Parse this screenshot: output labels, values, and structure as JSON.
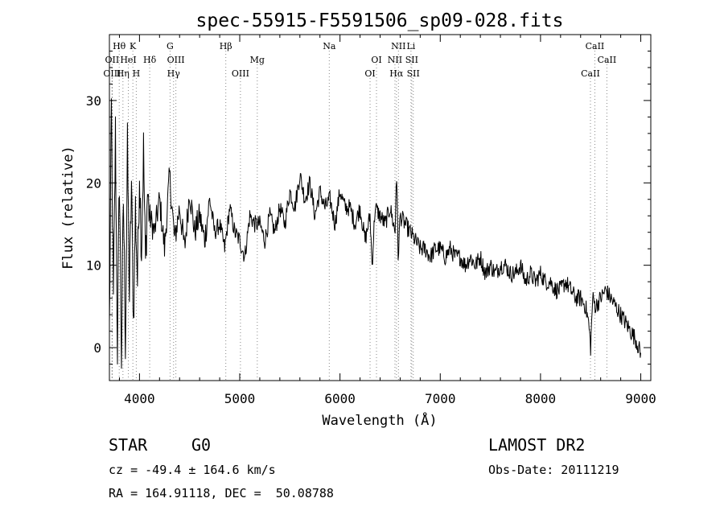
{
  "chart_data": {
    "type": "line",
    "title": "spec-55915-F5591506_sp09-028.fits",
    "xlabel": "Wavelength (Å)",
    "ylabel": "Flux (relative)",
    "xlim": [
      3700,
      9100
    ],
    "ylim": [
      -4,
      38
    ],
    "x_ticks": [
      4000,
      5000,
      6000,
      7000,
      8000,
      9000
    ],
    "x_tick_labels": [
      "4000",
      "5000",
      "6000",
      "7000",
      "8000",
      "9000"
    ],
    "y_ticks": [
      0,
      10,
      20,
      30
    ],
    "y_tick_labels": [
      "0",
      "10",
      "20",
      "30"
    ],
    "grid": false,
    "series": [
      {
        "x": [
          3700,
          3720,
          3740,
          3760,
          3780,
          3800,
          3820,
          3840,
          3860,
          3880,
          3900,
          3920,
          3940,
          3960,
          3980,
          4000,
          4020,
          4040,
          4060,
          4080,
          4100,
          4150,
          4200,
          4250,
          4300,
          4350,
          4400,
          4450,
          4500,
          4550,
          4600,
          4650,
          4700,
          4750,
          4800,
          4850,
          4900,
          4950,
          5000,
          5050,
          5100,
          5150,
          5200,
          5250,
          5300,
          5350,
          5400,
          5450,
          5500,
          5550,
          5600,
          5650,
          5700,
          5750,
          5800,
          5850,
          5900,
          5950,
          6000,
          6050,
          6100,
          6150,
          6200,
          6250,
          6300,
          6320,
          6350,
          6400,
          6450,
          6500,
          6550,
          6563,
          6580,
          6600,
          6650,
          6700,
          6750,
          6800,
          6850,
          6900,
          6950,
          7000,
          7050,
          7100,
          7150,
          7200,
          7250,
          7300,
          7350,
          7400,
          7450,
          7500,
          7550,
          7600,
          7650,
          7700,
          7750,
          7800,
          7850,
          7900,
          7950,
          8000,
          8050,
          8100,
          8150,
          8200,
          8250,
          8300,
          8350,
          8400,
          8450,
          8480,
          8500,
          8520,
          8550,
          8600,
          8650,
          8700,
          8750,
          8800,
          8850,
          8900,
          8950,
          8980,
          9000
        ],
        "y": [
          2,
          29,
          5,
          26,
          0,
          21,
          -1,
          18,
          1,
          24,
          6,
          20,
          3,
          17,
          8,
          22,
          12,
          24,
          10,
          19,
          16,
          14,
          18,
          12,
          21,
          13,
          17,
          12,
          19,
          14,
          16,
          13,
          18,
          14,
          15,
          12,
          17,
          14,
          13,
          11,
          16,
          15,
          15,
          13,
          16,
          14,
          17,
          15,
          19,
          17,
          21,
          18,
          20,
          16,
          19,
          17,
          18,
          15,
          19,
          17,
          17,
          15,
          17,
          13,
          16,
          10,
          17,
          16,
          15,
          17,
          14,
          22,
          11,
          16,
          15,
          14,
          13,
          12,
          12,
          11,
          12,
          12,
          11,
          12,
          11,
          11,
          10,
          11,
          10,
          11,
          9,
          10,
          9,
          10,
          10,
          9,
          9,
          10,
          8,
          9,
          8,
          9,
          8,
          8,
          7,
          7,
          8,
          7,
          6,
          6,
          5,
          3,
          0,
          6,
          5,
          6,
          7,
          6,
          5,
          4,
          3,
          2,
          1,
          0,
          -1
        ]
      }
    ],
    "lines": [
      {
        "label": "Hθ",
        "row": 0,
        "x": 3798
      },
      {
        "label": "K",
        "row": 0,
        "x": 3934
      },
      {
        "label": "G",
        "row": 0,
        "x": 4305
      },
      {
        "label": "Hβ",
        "row": 0,
        "x": 4861
      },
      {
        "label": "Na",
        "row": 0,
        "x": 5893
      },
      {
        "label": "NII",
        "row": 0,
        "x": 6583
      },
      {
        "label": "Li",
        "row": 0,
        "x": 6708
      },
      {
        "label": "CaII",
        "row": 0,
        "x": 8542
      },
      {
        "label": "OII",
        "row": 1,
        "x": 3727
      },
      {
        "label": "HeI",
        "row": 1,
        "x": 3889
      },
      {
        "label": "Hδ",
        "row": 1,
        "x": 4102
      },
      {
        "label": "OIII",
        "row": 1,
        "x": 4363
      },
      {
        "label": "Mg",
        "row": 1,
        "x": 5175
      },
      {
        "label": "OI",
        "row": 1,
        "x": 6364
      },
      {
        "label": "NII",
        "row": 1,
        "x": 6548
      },
      {
        "label": "SII",
        "row": 1,
        "x": 6716
      },
      {
        "label": "CaII",
        "row": 1,
        "x": 8662
      },
      {
        "label": "OIII",
        "row": 2,
        "x": 3727
      },
      {
        "label": "Hη",
        "row": 2,
        "x": 3835
      },
      {
        "label": "H",
        "row": 2,
        "x": 3968
      },
      {
        "label": "Hγ",
        "row": 2,
        "x": 4340
      },
      {
        "label": "OIII",
        "row": 2,
        "x": 5007
      },
      {
        "label": "OI",
        "row": 2,
        "x": 6300
      },
      {
        "label": "Hα",
        "row": 2,
        "x": 6563
      },
      {
        "label": "SII",
        "row": 2,
        "x": 6731
      },
      {
        "label": "CaII",
        "row": 2,
        "x": 8498
      }
    ],
    "line_color": "#000000",
    "marker_color": "#888888"
  },
  "info": {
    "object_class": "STAR",
    "subclass": "G0",
    "survey": "LAMOST DR2",
    "redshift": "cz = -49.4 ± 164.6 km/s",
    "obs_date": "Obs-Date: 20111219",
    "coords": "RA = 164.91118, DEC =  50.08788"
  }
}
